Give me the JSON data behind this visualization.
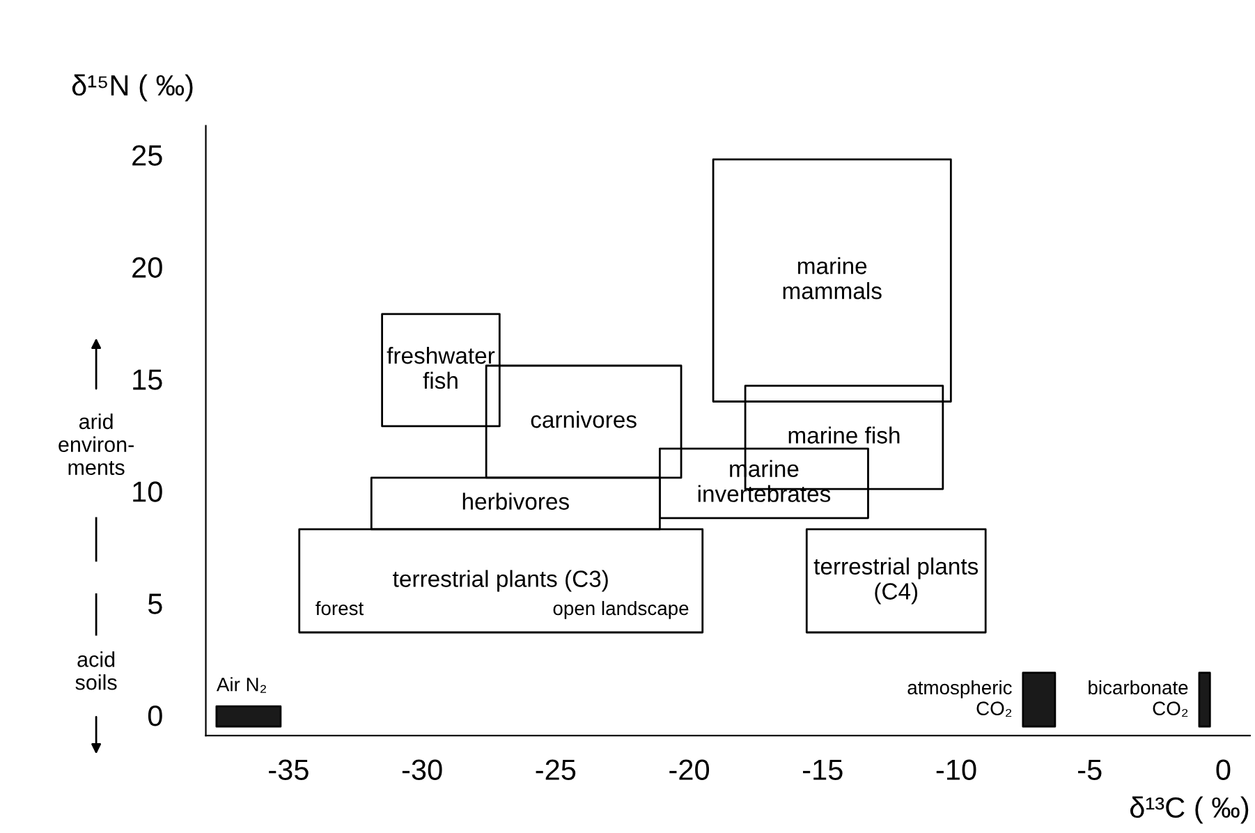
{
  "chart_data": {
    "type": "area",
    "xlabel": "δ¹³C ( ‰)",
    "ylabel": "δ¹⁵N ( ‰)",
    "xlim": [
      -38.1,
      1.0
    ],
    "ylim": [
      -0.9,
      26.3
    ],
    "xticks": [
      -35,
      -30,
      -25,
      -20,
      -15,
      -10,
      -5,
      0
    ],
    "yticks": [
      0,
      5,
      10,
      15,
      20,
      25
    ],
    "grid": false,
    "legend": false,
    "series": [
      {
        "name": "marine\nmammals",
        "color": "#ffffff",
        "x": [
          -19.1,
          -10.2,
          -10.2,
          -19.1,
          -19.1
        ],
        "values": [
          14.0,
          14.0,
          24.8,
          24.8,
          14.0
        ]
      },
      {
        "name": "freshwater\nfish",
        "color": "#ffffff",
        "x": [
          -31.5,
          -27.1,
          -27.1,
          -31.5,
          -31.5
        ],
        "values": [
          12.9,
          12.9,
          17.9,
          17.9,
          12.9
        ]
      },
      {
        "name": "carnivores",
        "color": "#ffffff",
        "x": [
          -27.6,
          -20.3,
          -20.3,
          -27.6,
          -27.6
        ],
        "values": [
          10.6,
          10.6,
          15.6,
          15.6,
          10.6
        ]
      },
      {
        "name": "marine fish",
        "color": "#ffffff",
        "x": [
          -17.9,
          -10.5,
          -10.5,
          -17.9,
          -17.9
        ],
        "values": [
          10.1,
          10.1,
          14.7,
          14.7,
          10.1
        ]
      },
      {
        "name": "marine\ninvertebrates",
        "color": "#ffffff",
        "x": [
          -21.1,
          -13.3,
          -13.3,
          -21.1,
          -21.1
        ],
        "values": [
          8.8,
          8.8,
          11.9,
          11.9,
          8.8
        ]
      },
      {
        "name": "herbivores",
        "color": "#ffffff",
        "x": [
          -31.9,
          -21.1,
          -21.1,
          -31.9,
          -31.9
        ],
        "values": [
          8.3,
          8.3,
          10.6,
          10.6,
          8.3
        ]
      },
      {
        "name": "terrestrial plants (C3)",
        "color": "#ffffff",
        "x": [
          -34.6,
          -19.5,
          -19.5,
          -34.6,
          -34.6
        ],
        "values": [
          3.7,
          3.7,
          8.3,
          8.3,
          3.7
        ]
      },
      {
        "name": "terrestrial plants\n(C4)",
        "color": "#ffffff",
        "x": [
          -15.6,
          -8.9,
          -8.9,
          -15.6,
          -15.6
        ],
        "values": [
          3.7,
          3.7,
          8.3,
          8.3,
          3.7
        ]
      },
      {
        "name": "Air N₂",
        "color": "#1a1a1a",
        "x": [
          -37.7,
          -35.3,
          -35.3,
          -37.7,
          -37.7
        ],
        "values": [
          -0.5,
          -0.5,
          0.4,
          0.4,
          -0.5
        ]
      },
      {
        "name": "atmospheric\nCO₂",
        "color": "#1a1a1a",
        "x": [
          -7.5,
          -6.3,
          -6.3,
          -7.5,
          -7.5
        ],
        "values": [
          -0.5,
          -0.5,
          1.9,
          1.9,
          -0.5
        ]
      },
      {
        "name": "bicarbonate\nCO₂",
        "color": "#1a1a1a",
        "x": [
          -0.9,
          -0.5,
          -0.5,
          -0.9,
          -0.9
        ],
        "values": [
          -0.5,
          -0.5,
          1.9,
          1.9,
          -0.5
        ]
      }
    ],
    "annotations": [
      "forest",
      "open landscape",
      "arid\nenviron-\nments",
      "acid\nsoils"
    ]
  }
}
